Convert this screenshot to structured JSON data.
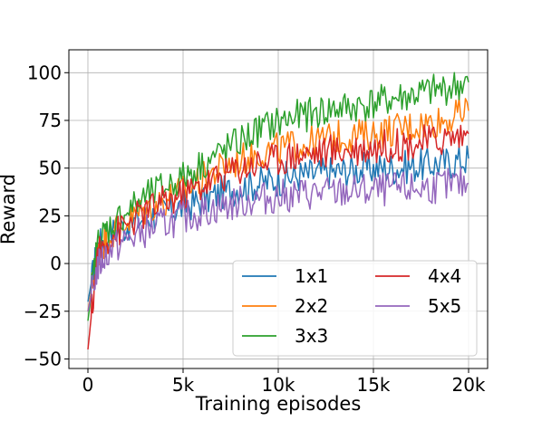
{
  "chart_data": {
    "type": "line",
    "xlabel": "Training episodes",
    "ylabel": "Reward",
    "xlim": [
      -1000,
      21000
    ],
    "ylim": [
      -55,
      112
    ],
    "x_ticks": [
      0,
      5000,
      10000,
      15000,
      20000
    ],
    "x_tick_labels": [
      "0",
      "5k",
      "10k",
      "15k",
      "20k"
    ],
    "y_ticks": [
      -50,
      -25,
      0,
      25,
      50,
      75,
      100
    ],
    "y_tick_labels": [
      "−50",
      "−25",
      "0",
      "25",
      "50",
      "75",
      "100"
    ],
    "grid": true,
    "legend": {
      "placement": "bottom-right",
      "columns": 2
    },
    "series": [
      {
        "name": "1x1",
        "color": "#1f77b4",
        "x": [
          0,
          500,
          1000,
          2000,
          3000,
          4000,
          5000,
          6000,
          7000,
          8000,
          9000,
          10000,
          11000,
          12000,
          13000,
          14000,
          15000,
          16000,
          17000,
          18000,
          19000,
          20000
        ],
        "values": [
          -20,
          8,
          15,
          20,
          24,
          27,
          30,
          33,
          37,
          40,
          42,
          44,
          46,
          47,
          48,
          49,
          50,
          50,
          51,
          52,
          53,
          55
        ]
      },
      {
        "name": "2x2",
        "color": "#ff7f0e",
        "x": [
          0,
          500,
          1000,
          2000,
          3000,
          4000,
          5000,
          6000,
          7000,
          8000,
          9000,
          10000,
          11000,
          12000,
          13000,
          14000,
          15000,
          16000,
          17000,
          18000,
          19000,
          20000
        ],
        "values": [
          -25,
          5,
          14,
          22,
          28,
          33,
          38,
          44,
          50,
          54,
          58,
          60,
          62,
          64,
          66,
          67,
          68,
          70,
          72,
          74,
          76,
          80
        ]
      },
      {
        "name": "3x3",
        "color": "#2ca02c",
        "x": [
          0,
          500,
          1000,
          2000,
          3000,
          4000,
          5000,
          6000,
          7000,
          8000,
          9000,
          10000,
          11000,
          12000,
          13000,
          14000,
          15000,
          16000,
          17000,
          18000,
          19000,
          20000
        ],
        "values": [
          -30,
          10,
          18,
          27,
          34,
          40,
          45,
          52,
          58,
          64,
          70,
          74,
          77,
          79,
          81,
          82,
          84,
          86,
          88,
          90,
          92,
          95
        ]
      },
      {
        "name": "4x4",
        "color": "#d62728",
        "x": [
          0,
          500,
          1000,
          2000,
          3000,
          4000,
          5000,
          6000,
          7000,
          8000,
          9000,
          10000,
          11000,
          12000,
          13000,
          14000,
          15000,
          16000,
          17000,
          18000,
          19000,
          20000
        ],
        "values": [
          -45,
          4,
          12,
          20,
          27,
          32,
          36,
          41,
          46,
          50,
          53,
          55,
          57,
          58,
          59,
          60,
          61,
          62,
          63,
          64,
          66,
          68
        ]
      },
      {
        "name": "5x5",
        "color": "#9467bd",
        "x": [
          0,
          500,
          1000,
          2000,
          3000,
          4000,
          5000,
          6000,
          7000,
          8000,
          9000,
          10000,
          11000,
          12000,
          13000,
          14000,
          15000,
          16000,
          17000,
          18000,
          19000,
          20000
        ],
        "values": [
          -25,
          -2,
          6,
          12,
          17,
          21,
          24,
          27,
          30,
          32,
          34,
          35,
          36,
          37,
          37,
          38,
          38,
          39,
          39,
          40,
          41,
          42
        ]
      }
    ]
  }
}
